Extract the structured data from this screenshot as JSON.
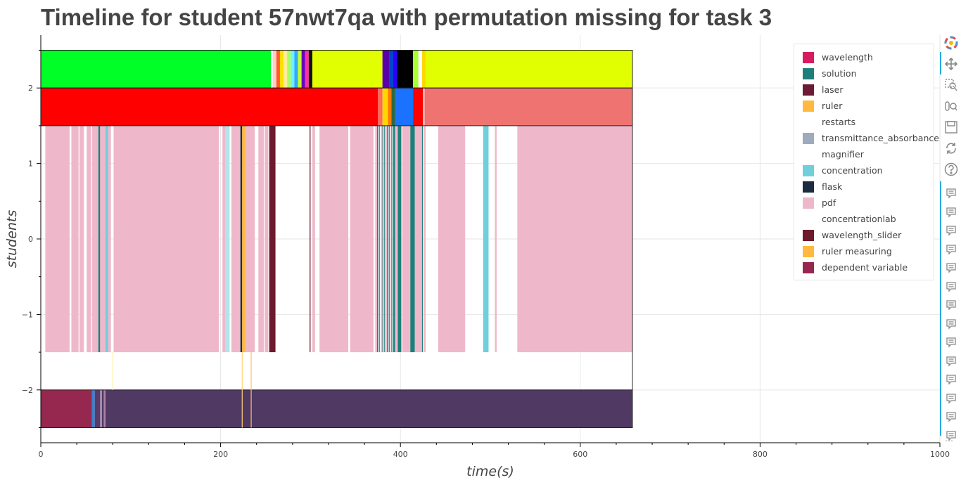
{
  "title": "Timeline for student 57nwt7qa with permutation missing for task 3",
  "legend": [
    {
      "label": "wavelength",
      "color": "#d81b60"
    },
    {
      "label": "solution",
      "color": "#1e7f7a"
    },
    {
      "label": "laser",
      "color": "#6d1a36"
    },
    {
      "label": "ruler",
      "color": "#ffb940"
    },
    {
      "label": "restarts",
      "color": "#ffffff"
    },
    {
      "label": "transmittance_absorbance",
      "color": "#9eabbd"
    },
    {
      "label": "magnifier",
      "color": "#ffffff"
    },
    {
      "label": "concentration",
      "color": "#6fcfda"
    },
    {
      "label": "flask",
      "color": "#1c2c40"
    },
    {
      "label": "pdf",
      "color": "#efb8ca"
    },
    {
      "label": "concentrationlab",
      "color": "#ffffff"
    },
    {
      "label": "wavelength_slider",
      "color": "#6d1a2c"
    },
    {
      "label": "ruler measuring",
      "color": "#ffb940"
    },
    {
      "label": "dependent variable",
      "color": "#96284f"
    }
  ],
  "chart_data": {
    "type": "timeline",
    "xlabel": "time(s)",
    "ylabel": "students",
    "xlim": [
      0,
      1000
    ],
    "ylim": [
      -2.7,
      2.7
    ],
    "xticks": [
      0,
      200,
      400,
      600,
      800,
      1000
    ],
    "yticks": [
      2,
      1,
      0,
      -1,
      -2
    ],
    "ytick_labels": [
      "2",
      "1",
      "0",
      "−1",
      "−2"
    ],
    "bands": [
      {
        "y_range": [
          2.0,
          2.5
        ],
        "segments": [
          {
            "start": 0,
            "end": 256,
            "color": "#00ff26"
          },
          {
            "start": 256,
            "end": 258,
            "color": "#ffffff"
          },
          {
            "start": 258,
            "end": 262,
            "color": "#ffd0c0"
          },
          {
            "start": 262,
            "end": 266,
            "color": "#ff5a2a"
          },
          {
            "start": 266,
            "end": 270,
            "color": "#ffe000"
          },
          {
            "start": 270,
            "end": 274,
            "color": "#ffee99"
          },
          {
            "start": 274,
            "end": 278,
            "color": "#a8ff60"
          },
          {
            "start": 278,
            "end": 282,
            "color": "#6ef0ff"
          },
          {
            "start": 282,
            "end": 286,
            "color": "#33aaff"
          },
          {
            "start": 286,
            "end": 290,
            "color": "#c0ff30"
          },
          {
            "start": 290,
            "end": 294,
            "color": "#6a00c0"
          },
          {
            "start": 294,
            "end": 298,
            "color": "#ff2fa0"
          },
          {
            "start": 298,
            "end": 302,
            "color": "#111111"
          },
          {
            "start": 302,
            "end": 380,
            "color": "#e1ff00"
          },
          {
            "start": 380,
            "end": 388,
            "color": "#5a00aa"
          },
          {
            "start": 388,
            "end": 392,
            "color": "#0044cc"
          },
          {
            "start": 392,
            "end": 396,
            "color": "#2a00ff"
          },
          {
            "start": 396,
            "end": 414,
            "color": "#000000"
          },
          {
            "start": 414,
            "end": 420,
            "color": "#aaff33"
          },
          {
            "start": 420,
            "end": 424,
            "color": "#ffffff"
          },
          {
            "start": 424,
            "end": 428,
            "color": "#ffd700"
          },
          {
            "start": 428,
            "end": 658,
            "color": "#e1ff00"
          }
        ]
      },
      {
        "y_range": [
          1.5,
          2.0
        ],
        "segments": [
          {
            "start": 0,
            "end": 375,
            "color": "#ff0000"
          },
          {
            "start": 375,
            "end": 380,
            "color": "#ff6a5a"
          },
          {
            "start": 380,
            "end": 386,
            "color": "#ffd700"
          },
          {
            "start": 386,
            "end": 390,
            "color": "#ff7a00"
          },
          {
            "start": 390,
            "end": 394,
            "color": "#2a6a40"
          },
          {
            "start": 394,
            "end": 414,
            "color": "#1a72ff"
          },
          {
            "start": 414,
            "end": 425,
            "color": "#ff0000"
          },
          {
            "start": 425,
            "end": 427,
            "color": "#ffb0b0"
          },
          {
            "start": 427,
            "end": 658,
            "color": "#ef7370"
          }
        ]
      },
      {
        "y_range": [
          -1.5,
          1.5
        ],
        "segments": [
          {
            "start": 5,
            "end": 32,
            "color": "#efb8ca"
          },
          {
            "start": 34,
            "end": 42,
            "color": "#efb8ca"
          },
          {
            "start": 43,
            "end": 48,
            "color": "#efb8ca"
          },
          {
            "start": 48,
            "end": 51,
            "color": "#ffffff"
          },
          {
            "start": 51,
            "end": 56,
            "color": "#efb8ca"
          },
          {
            "start": 57,
            "end": 64,
            "color": "#efb8ca"
          },
          {
            "start": 64,
            "end": 66,
            "color": "#1e7f7a"
          },
          {
            "start": 66,
            "end": 72,
            "color": "#efb8ca"
          },
          {
            "start": 72,
            "end": 75,
            "color": "#6fcfda"
          },
          {
            "start": 75,
            "end": 78,
            "color": "#efb8ca"
          },
          {
            "start": 81,
            "end": 198,
            "color": "#efb8ca"
          },
          {
            "start": 202,
            "end": 205,
            "color": "#efb8ca"
          },
          {
            "start": 205,
            "end": 210,
            "color": "#b0e5ec"
          },
          {
            "start": 212,
            "end": 222,
            "color": "#efb8ca"
          },
          {
            "start": 222,
            "end": 224,
            "color": "#1c2c40"
          },
          {
            "start": 224,
            "end": 228,
            "color": "#ffb940"
          },
          {
            "start": 228,
            "end": 238,
            "color": "#efb8ca"
          },
          {
            "start": 242,
            "end": 248,
            "color": "#efb8ca"
          },
          {
            "start": 249,
            "end": 253,
            "color": "#efb8ca"
          },
          {
            "start": 254,
            "end": 261,
            "color": "#6d1a2c"
          },
          {
            "start": 299,
            "end": 300,
            "color": "#6d1a2c"
          },
          {
            "start": 302,
            "end": 305,
            "color": "#efb8ca"
          },
          {
            "start": 310,
            "end": 342,
            "color": "#efb8ca"
          },
          {
            "start": 344,
            "end": 370,
            "color": "#efb8ca"
          },
          {
            "start": 372,
            "end": 374,
            "color": "#efb8ca"
          },
          {
            "start": 374,
            "end": 375,
            "color": "#1e7f7a"
          },
          {
            "start": 376,
            "end": 377,
            "color": "#1e7f7a"
          },
          {
            "start": 378,
            "end": 380,
            "color": "#efb8ca"
          },
          {
            "start": 380,
            "end": 381,
            "color": "#1e7f7a"
          },
          {
            "start": 382,
            "end": 383,
            "color": "#1e7f7a"
          },
          {
            "start": 384,
            "end": 385,
            "color": "#efb8ca"
          },
          {
            "start": 385,
            "end": 386,
            "color": "#1e7f7a"
          },
          {
            "start": 387,
            "end": 388,
            "color": "#1e7f7a"
          },
          {
            "start": 389,
            "end": 390,
            "color": "#efb8ca"
          },
          {
            "start": 390,
            "end": 391,
            "color": "#1e7f7a"
          },
          {
            "start": 392,
            "end": 394,
            "color": "#1e7f7a"
          },
          {
            "start": 394,
            "end": 397,
            "color": "#efb8ca"
          },
          {
            "start": 397,
            "end": 401,
            "color": "#1e7f7a"
          },
          {
            "start": 402,
            "end": 411,
            "color": "#efb8ca"
          },
          {
            "start": 411,
            "end": 416,
            "color": "#1e7f7a"
          },
          {
            "start": 416,
            "end": 424,
            "color": "#efb8ca"
          },
          {
            "start": 424,
            "end": 425,
            "color": "#1e7f7a"
          },
          {
            "start": 426,
            "end": 428,
            "color": "#efb8ca"
          },
          {
            "start": 442,
            "end": 472,
            "color": "#efb8ca"
          },
          {
            "start": 492,
            "end": 498,
            "color": "#6fcfda"
          },
          {
            "start": 505,
            "end": 507,
            "color": "#efb8ca"
          },
          {
            "start": 530,
            "end": 658,
            "color": "#efb8ca"
          }
        ]
      },
      {
        "y_range": [
          -2.5,
          -2.0
        ],
        "segments": [
          {
            "start": 0,
            "end": 57,
            "color": "#96284f"
          },
          {
            "start": 57,
            "end": 60,
            "color": "#3a7fd0"
          },
          {
            "start": 60,
            "end": 66,
            "color": "#5a3a66"
          },
          {
            "start": 66,
            "end": 68,
            "color": "#9e8fb0"
          },
          {
            "start": 68,
            "end": 70,
            "color": "#4f3a66"
          },
          {
            "start": 70,
            "end": 72,
            "color": "#b07fa0"
          },
          {
            "start": 72,
            "end": 658,
            "color": "#503a63"
          }
        ]
      }
    ],
    "lines": [
      {
        "x": 80,
        "y_from": -2.0,
        "y_to": -1.5,
        "color": "#fff0b0"
      },
      {
        "x": 224,
        "y_from": -2.0,
        "y_to": -1.5,
        "color": "#ffd27a"
      },
      {
        "x": 224,
        "y_from": -2.5,
        "y_to": -2.0,
        "color": "#ffd27a"
      },
      {
        "x": 234,
        "y_from": -2.5,
        "y_to": -1.5,
        "color": "#ffc060"
      }
    ]
  }
}
